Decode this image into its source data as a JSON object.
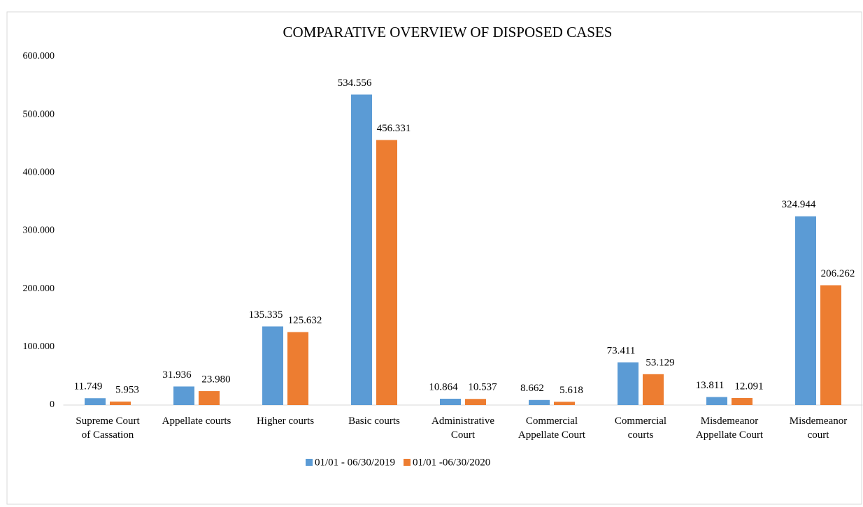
{
  "chart_data": {
    "type": "bar",
    "title": "COMPARATIVE OVERVIEW OF DISPOSED CASES",
    "categories": [
      "Supreme Court\nof Cassation",
      "Appellate courts",
      "Higher courts",
      "Basic courts",
      "Administrative\nCourt",
      "Commercial\nAppellate Court",
      "Commercial\ncourts",
      "Misdemeanor\nAppellate Court",
      "Misdemeanor\ncourt"
    ],
    "series": [
      {
        "name": "01/01 - 06/30/2019",
        "color": "#5b9bd5",
        "label_color": "#c00000",
        "values": [
          11749,
          31936,
          135335,
          534556,
          10864,
          8662,
          73411,
          13811,
          324944
        ],
        "value_labels": [
          "11.749",
          "31.936",
          "135.335",
          "534.556",
          "10.864",
          "8.662",
          "73.411",
          "13.811",
          "324.944"
        ]
      },
      {
        "name": "01/01 -06/30/2020",
        "color": "#ed7d31",
        "label_color": "#000000",
        "values": [
          5953,
          23980,
          125632,
          456331,
          10537,
          5618,
          53129,
          12091,
          206262
        ],
        "value_labels": [
          "5.953",
          "23.980",
          "125.632",
          "456.331",
          "10.537",
          "5.618",
          "53.129",
          "12.091",
          "206.262"
        ]
      }
    ],
    "ylim": [
      0,
      600000
    ],
    "yticks": [
      0,
      {
        "value": 100000,
        "label": "100.000"
      },
      {
        "value": 200000,
        "label": "200.000"
      },
      {
        "value": 300000,
        "label": "300.000"
      },
      {
        "value": 400000,
        "label": "400.000"
      },
      {
        "value": 500000,
        "label": "500.000"
      },
      {
        "value": 600000,
        "label": "600.000"
      }
    ],
    "legend": "bottom"
  }
}
